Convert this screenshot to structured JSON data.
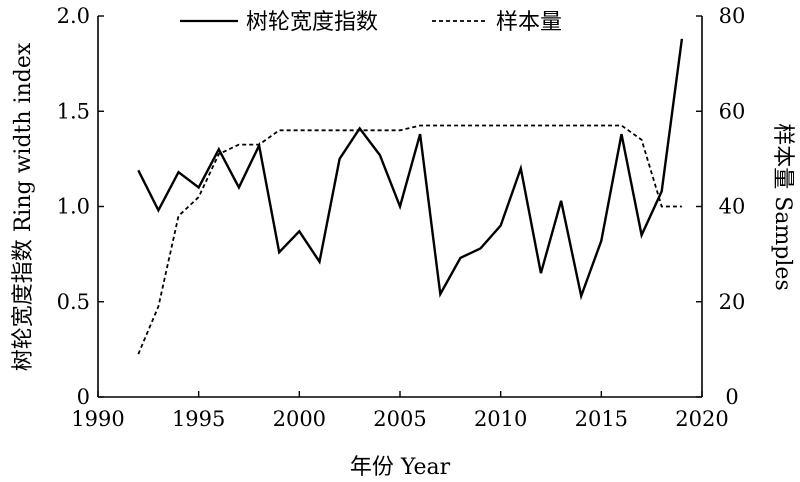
{
  "chart_data": {
    "type": "line",
    "title": "",
    "xlabel": "年份 Year",
    "ylabel_left": "树轮宽度指数 Ring width index",
    "ylabel_right": "样本量 Samples",
    "xlim": [
      1990,
      2020
    ],
    "ylim_left": [
      0,
      2.0
    ],
    "ylim_right": [
      0,
      80
    ],
    "xticks": [
      "1990",
      "1995",
      "2000",
      "2005",
      "2010",
      "2015",
      "2020"
    ],
    "yticks_left": [
      "0",
      "0.5",
      "1.0",
      "1.5",
      "2.0"
    ],
    "yticks_right": [
      "0",
      "20",
      "40",
      "60",
      "80"
    ],
    "grid": false,
    "legend_position": "top",
    "series": [
      {
        "name": "树轮宽度指数",
        "axis": "left",
        "style": "solid",
        "color": "#000000",
        "x": [
          1992,
          1993,
          1994,
          1995,
          1996,
          1997,
          1998,
          1999,
          2000,
          2001,
          2002,
          2003,
          2004,
          2005,
          2006,
          2007,
          2008,
          2009,
          2010,
          2011,
          2012,
          2013,
          2014,
          2015,
          2016,
          2017,
          2018,
          2019
        ],
        "y": [
          1.19,
          0.98,
          1.18,
          1.1,
          1.3,
          1.1,
          1.32,
          0.76,
          0.87,
          0.71,
          1.25,
          1.41,
          1.27,
          1.0,
          1.38,
          0.54,
          0.73,
          0.78,
          0.9,
          1.2,
          0.65,
          1.03,
          0.53,
          0.82,
          1.38,
          0.85,
          1.08,
          1.88
        ]
      },
      {
        "name": "样本量",
        "axis": "right",
        "style": "dashed",
        "color": "#000000",
        "x": [
          1992,
          1993,
          1994,
          1995,
          1996,
          1997,
          1998,
          1999,
          2000,
          2001,
          2002,
          2003,
          2004,
          2005,
          2006,
          2007,
          2008,
          2009,
          2010,
          2011,
          2012,
          2013,
          2014,
          2015,
          2016,
          2017,
          2018,
          2019
        ],
        "y": [
          9,
          19,
          38,
          42,
          51,
          53,
          53,
          56,
          56,
          56,
          56,
          56,
          56,
          56,
          57,
          57,
          57,
          57,
          57,
          57,
          57,
          57,
          57,
          57,
          57,
          54,
          40,
          40
        ]
      }
    ]
  }
}
